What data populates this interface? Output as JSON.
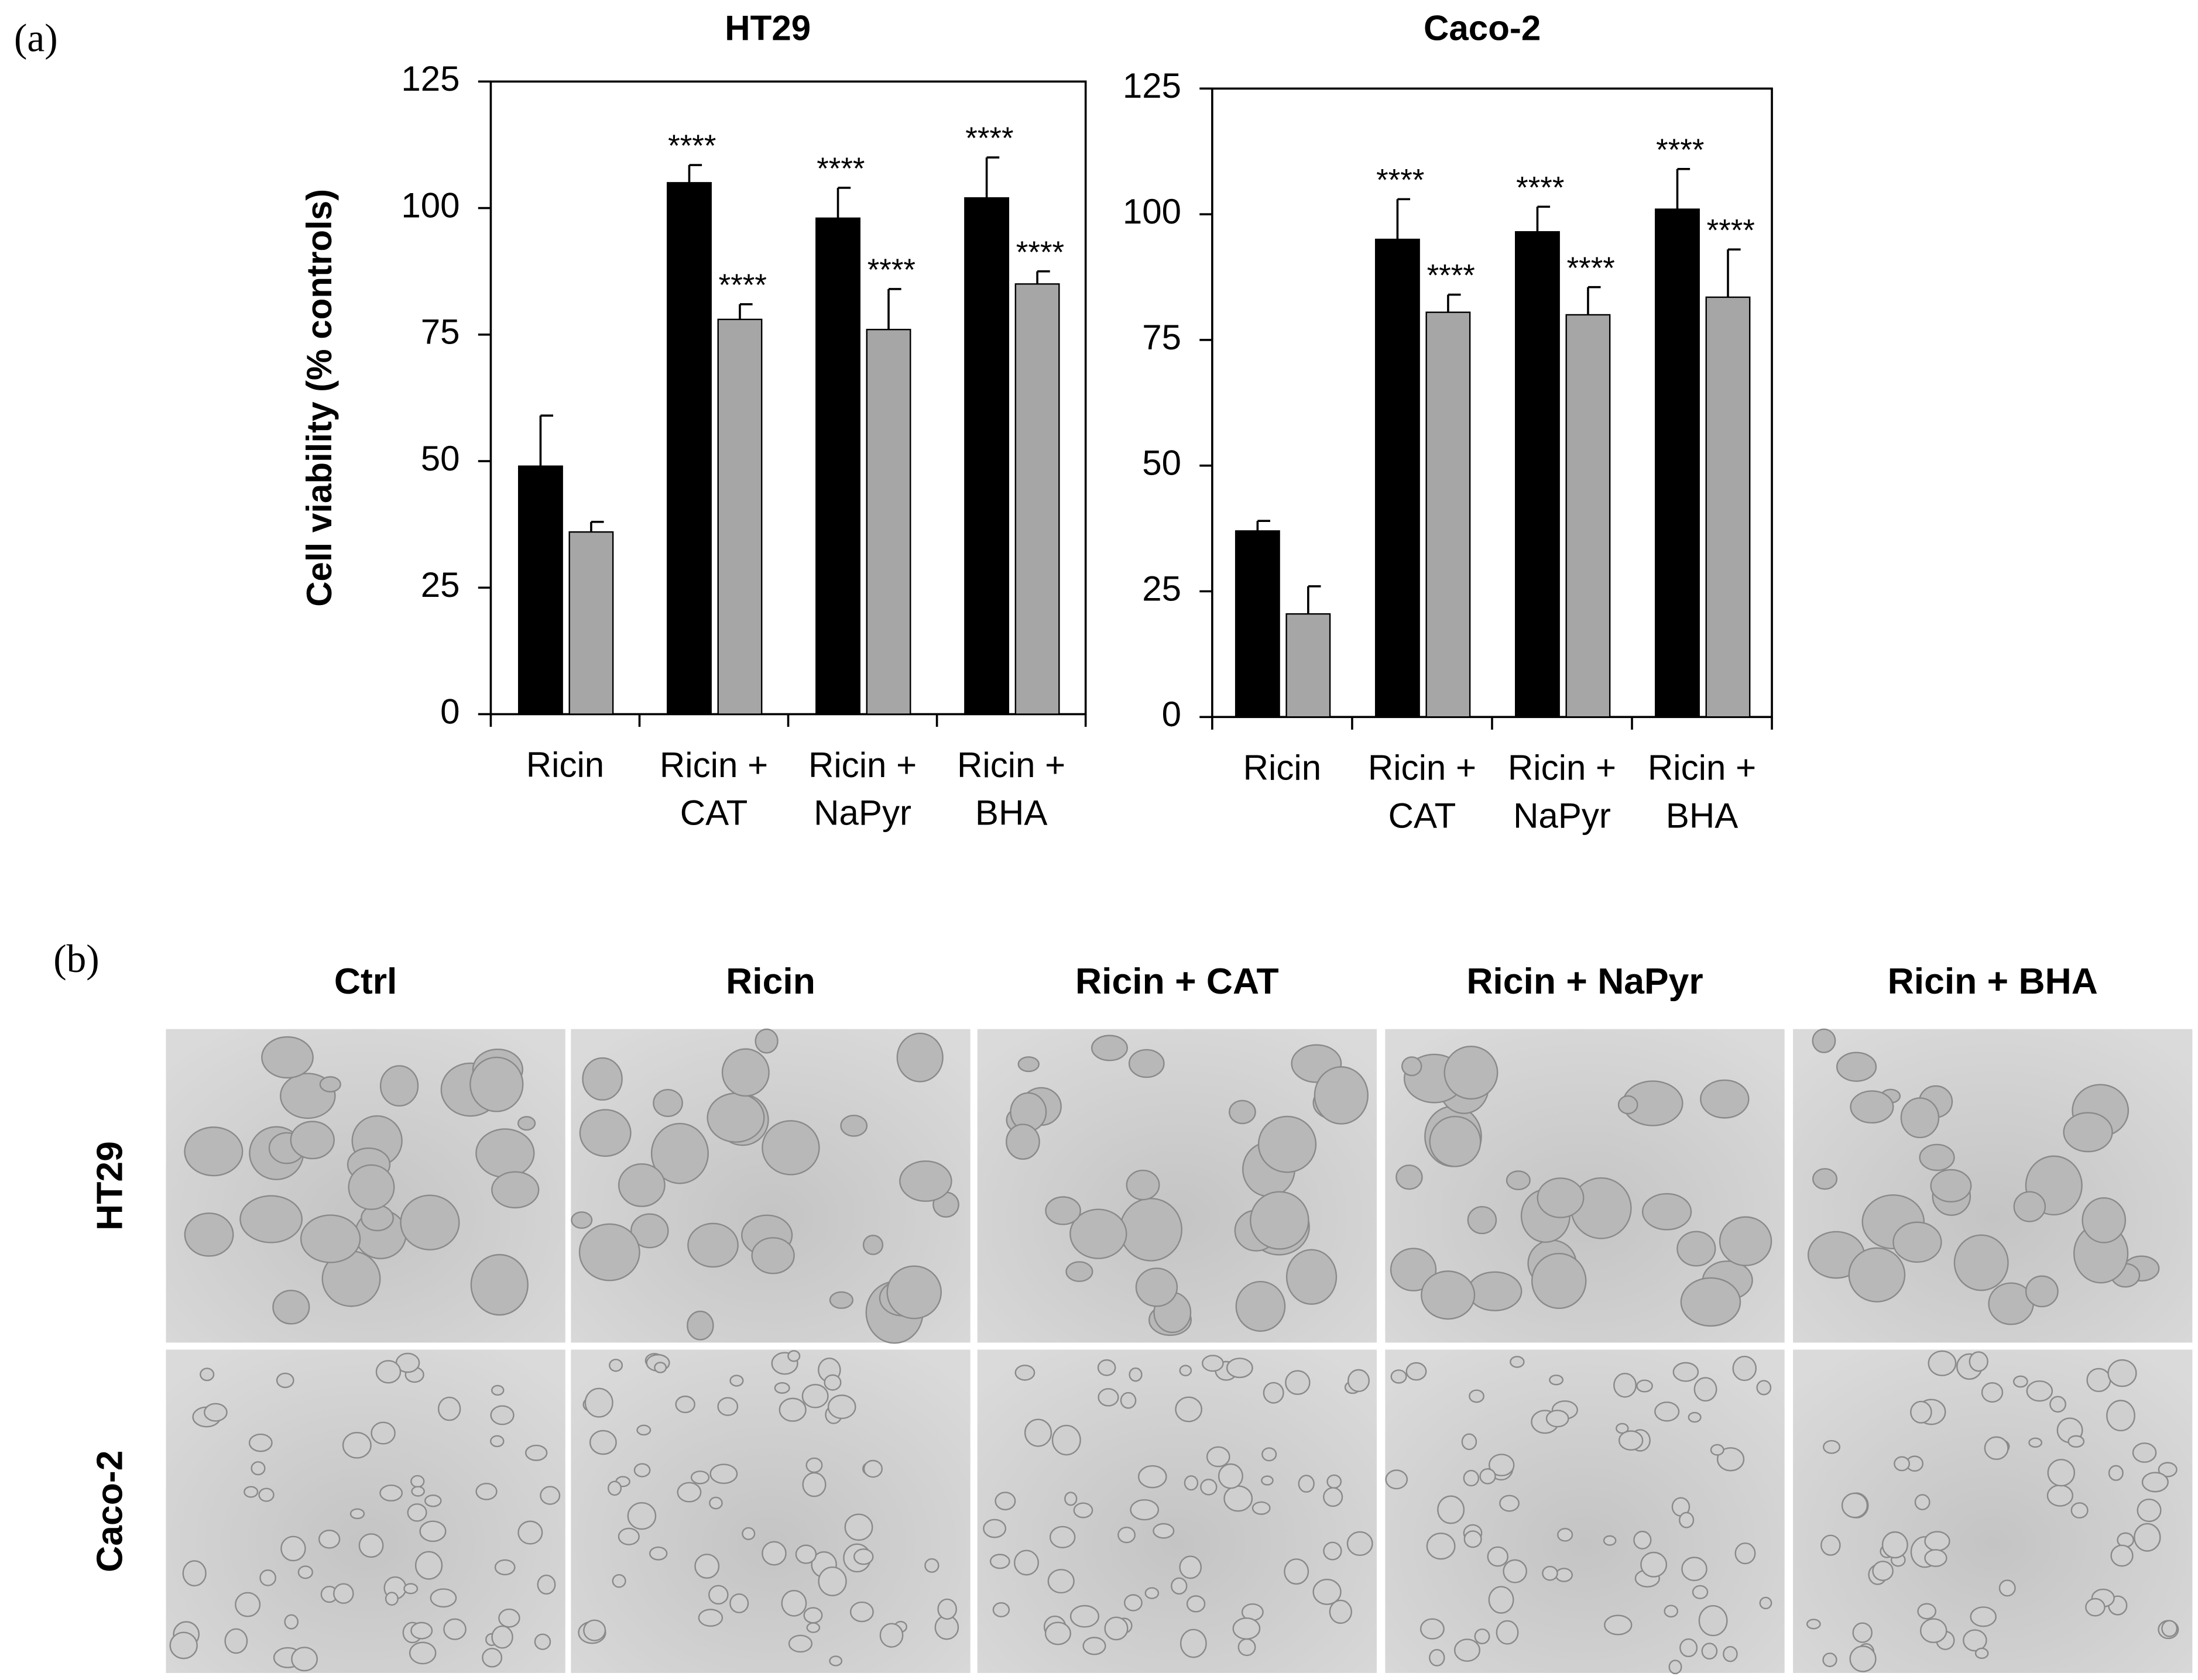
{
  "panels": [
    "(a)",
    "(b)"
  ],
  "chart_data": [
    {
      "type": "bar",
      "title": "HT29",
      "y_label": "Cell viability (% controls)",
      "categories": [
        "Ricin",
        "Ricin + CAT",
        "Ricin + NaPyr",
        "Ricin + BHA"
      ],
      "series": [
        {
          "color": "#000000",
          "values": [
            49,
            105,
            98,
            102
          ],
          "errors": [
            10,
            3.5,
            6,
            8
          ],
          "annotations": [
            null,
            "****",
            "****",
            "****"
          ]
        },
        {
          "color": "#a6a6a6",
          "values": [
            36,
            78,
            76,
            85
          ],
          "errors": [
            2,
            3,
            8,
            2.5
          ],
          "annotations": [
            null,
            "****",
            "****",
            "****"
          ]
        }
      ],
      "ylim": [
        0,
        125
      ],
      "yticks": [
        0,
        25,
        50,
        75,
        100,
        125
      ]
    },
    {
      "type": "bar",
      "title": "Caco-2",
      "categories": [
        "Ricin",
        "Ricin + CAT",
        "Ricin + NaPyr",
        "Ricin + BHA"
      ],
      "series": [
        {
          "color": "#000000",
          "values": [
            37,
            95,
            96.5,
            101
          ],
          "errors": [
            2,
            8,
            5,
            8
          ],
          "annotations": [
            null,
            "****",
            "****",
            "****"
          ]
        },
        {
          "color": "#a6a6a6",
          "values": [
            20.5,
            80.5,
            80,
            83.5
          ],
          "errors": [
            5.5,
            3.5,
            5.5,
            9.5
          ],
          "annotations": [
            null,
            "****",
            "****",
            "****"
          ]
        }
      ],
      "ylim": [
        0,
        125
      ],
      "yticks": [
        0,
        25,
        50,
        75,
        100,
        125
      ]
    }
  ],
  "micrographs": {
    "columns": [
      "Ctrl",
      "Ricin",
      "Ricin + CAT",
      "Ricin + NaPyr",
      "Ricin + BHA"
    ],
    "rows": [
      "HT29",
      "Caco-2"
    ]
  }
}
